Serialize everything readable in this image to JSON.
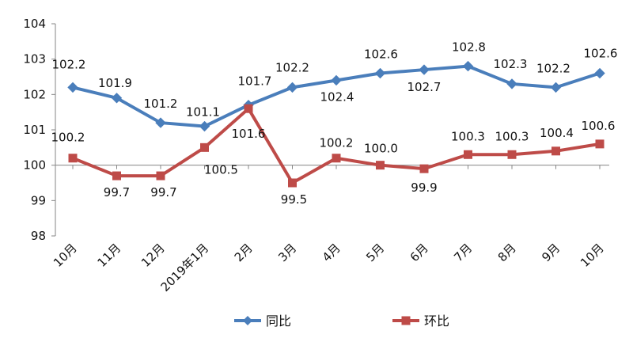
{
  "chart_data": {
    "type": "line",
    "categories": [
      "10月",
      "11月",
      "12月",
      "2019年1月",
      "2月",
      "3月",
      "4月",
      "5月",
      "6月",
      "7月",
      "8月",
      "9月",
      "10月"
    ],
    "ylim": [
      98,
      104
    ],
    "yticks": [
      "98",
      "99",
      "100",
      "101",
      "102",
      "103",
      "104"
    ],
    "grid": false,
    "legend_position": "bottom",
    "series": [
      {
        "name": "同比",
        "color": "#4A7EBB",
        "marker": "diamond",
        "values": [
          102.2,
          101.9,
          101.2,
          101.1,
          101.7,
          102.2,
          102.4,
          102.6,
          102.7,
          102.8,
          102.3,
          102.2,
          102.6
        ],
        "labels": [
          "102.2",
          "101.9",
          "101.2",
          "101.1",
          "101.7",
          "102.2",
          "102.4",
          "102.6",
          "102.7",
          "102.8",
          "102.3",
          "102.2",
          "102.6"
        ]
      },
      {
        "name": "环比",
        "color": "#BE4B48",
        "marker": "square",
        "values": [
          100.2,
          99.7,
          99.7,
          100.5,
          101.6,
          99.5,
          100.2,
          100.0,
          99.9,
          100.3,
          100.3,
          100.4,
          100.6
        ],
        "labels": [
          "100.2",
          "99.7",
          "99.7",
          "100.5",
          "101.6",
          "99.5",
          "100.2",
          "100.0",
          "99.9",
          "100.3",
          "100.3",
          "100.4",
          "100.6"
        ]
      }
    ]
  }
}
